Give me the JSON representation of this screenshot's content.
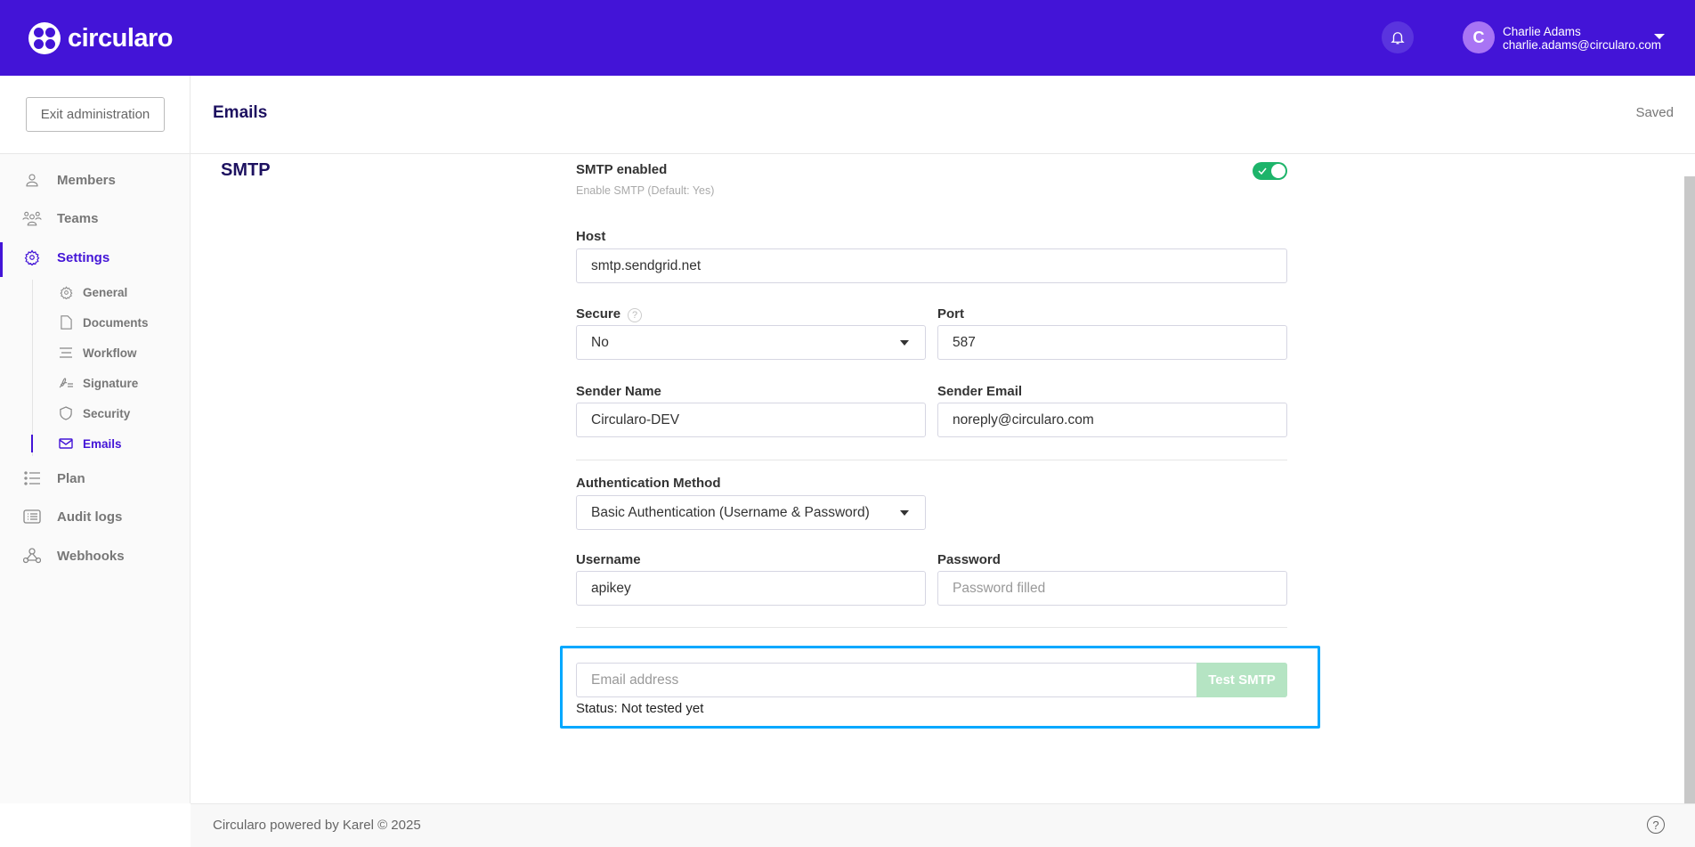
{
  "header": {
    "brand": "circularo",
    "user_initial": "C",
    "user_name": "Charlie Adams",
    "user_email": "charlie.adams@circularo.com",
    "accent": "#4314d7"
  },
  "sidebar": {
    "exit_label": "Exit administration",
    "items": [
      {
        "label": "Members",
        "icon": "user-icon"
      },
      {
        "label": "Teams",
        "icon": "users-icon"
      },
      {
        "label": "Settings",
        "icon": "gear-icon",
        "active": true
      },
      {
        "label": "Plan",
        "icon": "list-icon"
      },
      {
        "label": "Audit logs",
        "icon": "log-icon"
      },
      {
        "label": "Webhooks",
        "icon": "webhook-icon"
      }
    ],
    "subitems": [
      {
        "label": "General",
        "icon": "gear-icon"
      },
      {
        "label": "Documents",
        "icon": "document-icon"
      },
      {
        "label": "Workflow",
        "icon": "workflow-icon"
      },
      {
        "label": "Signature",
        "icon": "signature-icon"
      },
      {
        "label": "Security",
        "icon": "shield-icon"
      },
      {
        "label": "Emails",
        "icon": "mail-icon",
        "active": true
      }
    ]
  },
  "page": {
    "title": "Emails",
    "save_status": "Saved",
    "section": "SMTP"
  },
  "form": {
    "smtp_enabled": {
      "label": "SMTP enabled",
      "help": "Enable SMTP  (Default: Yes)",
      "value": true
    },
    "host": {
      "label": "Host",
      "value": "smtp.sendgrid.net"
    },
    "secure": {
      "label": "Secure",
      "value": "No"
    },
    "port": {
      "label": "Port",
      "value": "587"
    },
    "sender_name": {
      "label": "Sender Name",
      "value": "Circularo-DEV"
    },
    "sender_email": {
      "label": "Sender Email",
      "value": "noreply@circularo.com"
    },
    "auth_method": {
      "label": "Authentication Method",
      "value": "Basic Authentication (Username & Password)"
    },
    "username": {
      "label": "Username",
      "value": "apikey"
    },
    "password": {
      "label": "Password",
      "placeholder": "Password filled"
    }
  },
  "test": {
    "placeholder": "Email address",
    "button": "Test SMTP",
    "status": "Status: Not tested yet",
    "highlight": "#00a8ff"
  },
  "footer": {
    "text": "Circularo powered by Karel © 2025",
    "help": "?"
  }
}
